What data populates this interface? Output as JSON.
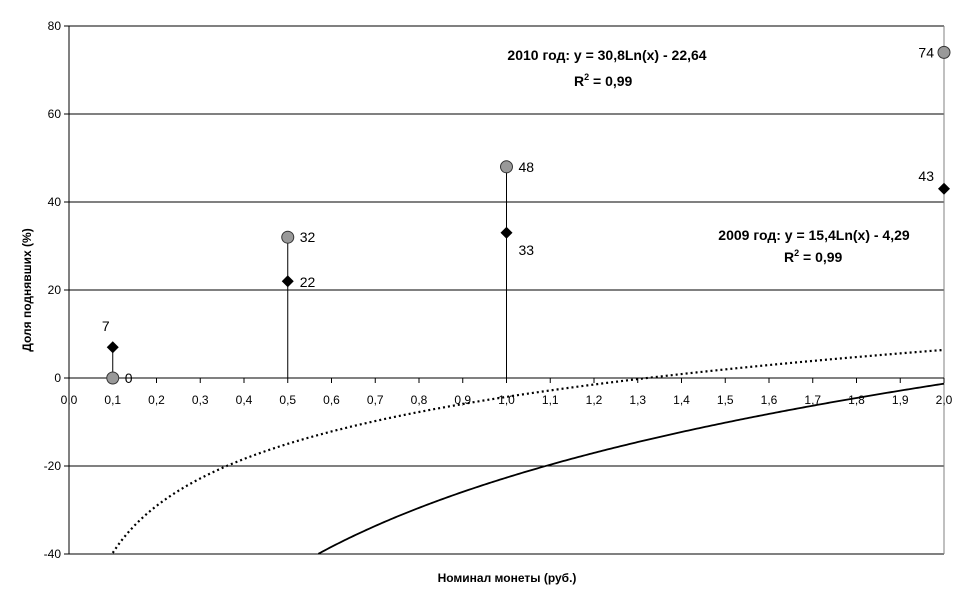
{
  "chart_data": {
    "type": "scatter",
    "xlabel": "Номинал монеты (руб.)",
    "ylabel": "Доля поднявших (%)",
    "xlim": [
      0.0,
      2.0
    ],
    "ylim": [
      -40,
      80
    ],
    "x_ticks": [
      "0,0",
      "0,1",
      "0,2",
      "0,3",
      "0,4",
      "0,5",
      "0,6",
      "0,7",
      "0,8",
      "0,9",
      "1,0",
      "1,1",
      "1,2",
      "1,3",
      "1,4",
      "1,5",
      "1,6",
      "1,7",
      "1,8",
      "1,9",
      "2,0"
    ],
    "y_ticks": [
      "-40",
      "-20",
      "0",
      "20",
      "40",
      "60",
      "80"
    ],
    "grid": "horizontal",
    "series": [
      {
        "key": "s2010",
        "marker": "circle",
        "color": "#999999",
        "x": [
          0.1,
          0.5,
          1.0,
          2.0
        ],
        "y": [
          0,
          32,
          48,
          74
        ],
        "labels": [
          "0",
          "32",
          "48",
          "74"
        ],
        "trend": {
          "kind": "log",
          "a": 30.8,
          "b": -22.64,
          "style": "solid"
        }
      },
      {
        "key": "s2009",
        "marker": "diamond",
        "color": "#000000",
        "x": [
          0.1,
          0.5,
          1.0,
          2.0
        ],
        "y": [
          7,
          22,
          33,
          43
        ],
        "labels": [
          "7",
          "22",
          "33",
          "43"
        ],
        "trend": {
          "kind": "log",
          "a": 15.4,
          "b": -4.29,
          "style": "dotted"
        }
      }
    ],
    "annotations": [
      {
        "series": "s2010",
        "equation": "2010 год: y = 30,8Ln(x) - 22,64",
        "r2_value": " = 0,99"
      },
      {
        "series": "s2009",
        "equation": "2009 год: y = 15,4Ln(x) - 4,29",
        "r2_value": " = 0,99"
      }
    ]
  }
}
